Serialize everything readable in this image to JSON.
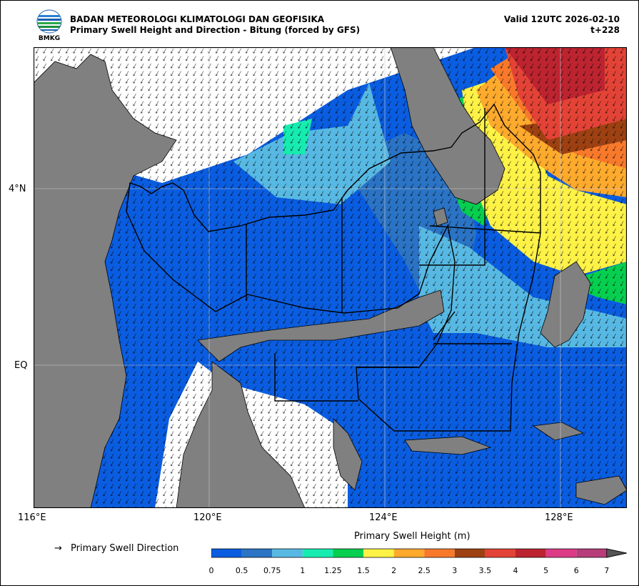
{
  "header": {
    "logo_text": "BMKG",
    "agency": "BADAN METEOROLOGI KLIMATOLOGI DAN GEOFISIKA",
    "product": "Primary Swell Height and Direction - Bitung (forced by GFS)",
    "valid": "Valid 12UTC 2026-02-10",
    "lead": "t+228"
  },
  "axes": {
    "lat_labels": [
      "4°N",
      "EQ"
    ],
    "lon_labels": [
      "116°E",
      "120°E",
      "124°E",
      "128°E"
    ]
  },
  "legend": {
    "direction_label": "Primary Swell Direction",
    "direction_icon": "arrow-icon",
    "colorbar_title": "Primary Swell Height (m)",
    "levels": [
      "0",
      "0.5",
      "0.75",
      "1",
      "1.25",
      "1.5",
      "2",
      "2.5",
      "3",
      "3.5",
      "4",
      "5",
      "6",
      "7"
    ],
    "colors": [
      "#0a5de0",
      "#2b73c4",
      "#57b9e3",
      "#17ecb0",
      "#06cf50",
      "#fef247",
      "#feaa2d",
      "#f8792b",
      "#9d4112",
      "#e34336",
      "#bc2430",
      "#de3b87",
      "#b73d7a"
    ],
    "extend_color": "#555555"
  },
  "map": {
    "land_color": "#808080",
    "no_data_color": "#ffffff"
  }
}
